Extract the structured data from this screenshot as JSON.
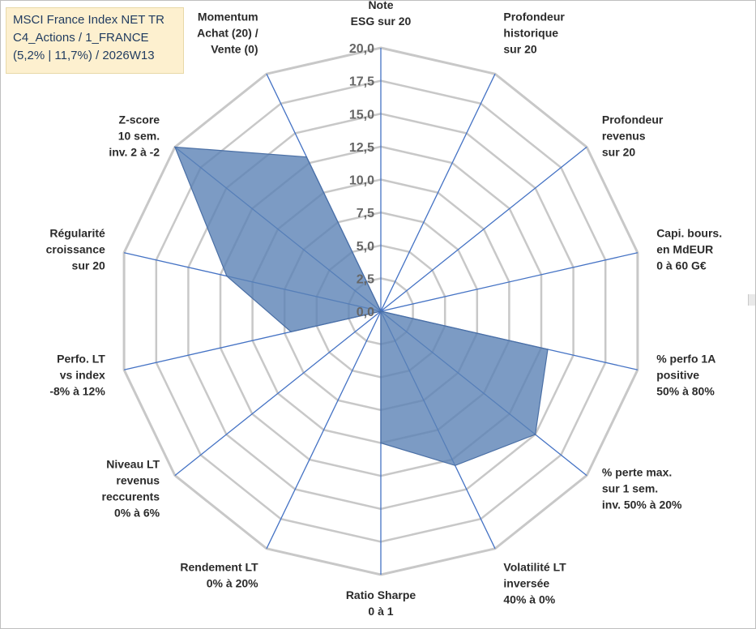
{
  "title_box": {
    "line1": "MSCI France Index NET TR",
    "line2": "C4_Actions / 1_FRANCE",
    "line3": "(5,2% | 11,7%) / 2026W13"
  },
  "chart_data": {
    "type": "radar",
    "title": "MSCI France Index NET TR",
    "rlim": [
      0,
      20
    ],
    "rticks": [
      "0,0",
      "2,5",
      "5,0",
      "7,5",
      "10,0",
      "12,5",
      "15,0",
      "17,5",
      "20,0"
    ],
    "grid": true,
    "axes": [
      [
        "Note",
        "ESG sur 20"
      ],
      [
        "Profondeur",
        "historique",
        "sur 20"
      ],
      [
        "Profondeur",
        "revenus",
        "sur 20"
      ],
      [
        "Capi. bours.",
        "en MdEUR",
        "0 à 60 G€"
      ],
      [
        "% perfo 1A",
        "positive",
        "50% à 80%"
      ],
      [
        "% perte max.",
        "sur 1 sem.",
        "inv. 50% à 20%"
      ],
      [
        "Volatilité LT",
        "inversée",
        "40% à 0%"
      ],
      [
        "Ratio Sharpe",
        "0 à 1"
      ],
      [
        "Rendement LT",
        "0% à 20%"
      ],
      [
        "Niveau LT",
        "revenus",
        "reccurents",
        "0% à 6%"
      ],
      [
        "Perfo. LT",
        "vs index",
        "-8% à 12%"
      ],
      [
        "Régularité",
        "croissance",
        "sur 20"
      ],
      [
        "Z-score",
        "10 sem.",
        "inv. 2 à -2"
      ],
      [
        "Momentum",
        "Achat (20) /",
        "Vente (0)"
      ]
    ],
    "series": [
      {
        "values": [
          0,
          0,
          0,
          0,
          13,
          15,
          13,
          10,
          0,
          0,
          7,
          12,
          20,
          13
        ],
        "color": "#5b82b5",
        "fill_opacity": 0.8
      }
    ],
    "colors": {
      "grid": "#c8c8c8",
      "spokes": "#4472c4",
      "fill": "#5b82b5",
      "stroke": "#4a6fa5"
    }
  }
}
